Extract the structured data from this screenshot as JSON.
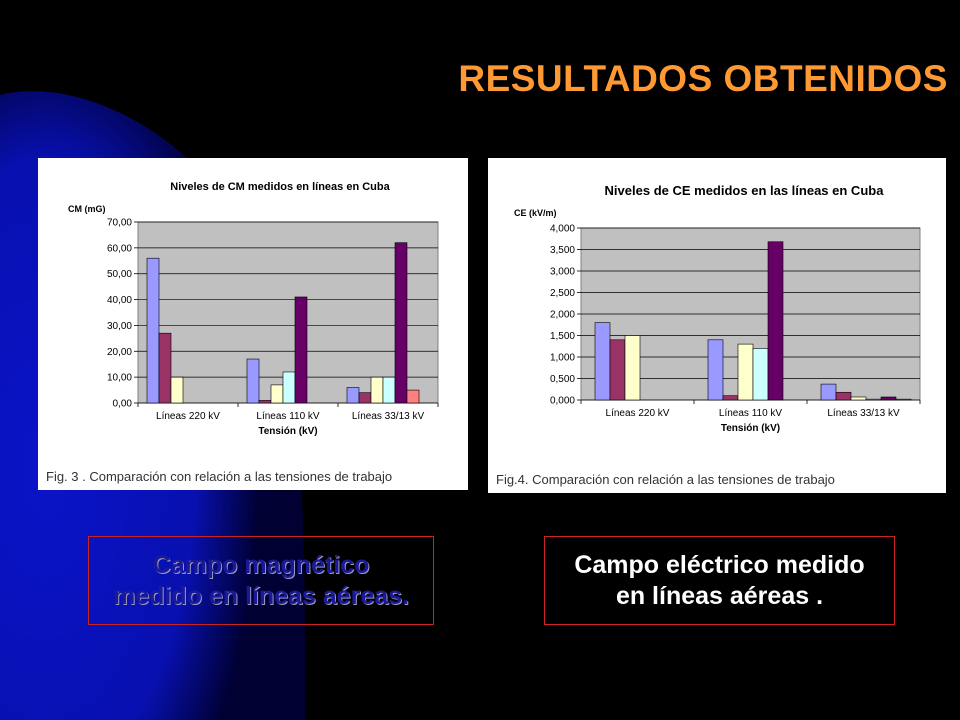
{
  "slide": {
    "title": "RESULTADOS OBTENIDOS",
    "title_color": "#ff9933",
    "background_color": "#000000",
    "accent_shape_color": "#0a14c8"
  },
  "captions": {
    "magnetic": {
      "line1": "Campo magnético",
      "line2": "medido en líneas aéreas.",
      "color": "#1a1a99"
    },
    "electric": {
      "line1": "Campo eléctrico medido",
      "line2": "en líneas aéreas .",
      "color": "#ffffff"
    }
  },
  "chart_data": [
    {
      "type": "bar",
      "title": "Niveles de CM medidos en líneas en Cuba",
      "ylabel": "CM (mG)",
      "xlabel": "Tensión (kV)",
      "caption": "Fig. 3 . Comparación con relación a las tensiones de trabajo",
      "categories": [
        "Líneas 220 kV",
        "Líneas 110 kV",
        "Líneas 33/13 kV"
      ],
      "ylim": [
        0,
        70
      ],
      "yticks": [
        "0,00",
        "10,00",
        "20,00",
        "30,00",
        "40,00",
        "50,00",
        "60,00",
        "70,00"
      ],
      "grid": true,
      "plot_background": "#c0c0c0",
      "series": [
        {
          "color": "#9999ff",
          "values": [
            56,
            17,
            6
          ]
        },
        {
          "color": "#993366",
          "values": [
            27,
            1,
            4
          ]
        },
        {
          "color": "#ffffcc",
          "values": [
            10,
            7,
            10
          ]
        },
        {
          "color": "#ccffff",
          "values": [
            0,
            12,
            10
          ]
        },
        {
          "color": "#660066",
          "values": [
            0,
            41,
            62
          ]
        },
        {
          "color": "#ff8080",
          "values": [
            0,
            0,
            5
          ]
        }
      ]
    },
    {
      "type": "bar",
      "title": "Niveles de CE medidos en las líneas en Cuba",
      "ylabel": "CE (kV/m)",
      "xlabel": "Tensión (kV)",
      "caption": "Fig.4. Comparación con relación a las tensiones de trabajo",
      "categories": [
        "Líneas 220 kV",
        "Líneas 110 kV",
        "Líneas 33/13 kV"
      ],
      "ylim": [
        0,
        4
      ],
      "yticks": [
        "0,000",
        "0,500",
        "1,000",
        "1,500",
        "2,000",
        "2,500",
        "3,000",
        "3,500",
        "4,000"
      ],
      "grid": true,
      "plot_background": "#c0c0c0",
      "series": [
        {
          "color": "#9999ff",
          "values": [
            1.8,
            1.4,
            0.37
          ]
        },
        {
          "color": "#993366",
          "values": [
            1.4,
            0.1,
            0.18
          ]
        },
        {
          "color": "#ffffcc",
          "values": [
            1.5,
            1.3,
            0.07
          ]
        },
        {
          "color": "#ccffff",
          "values": [
            0,
            1.2,
            0.02
          ]
        },
        {
          "color": "#660066",
          "values": [
            0,
            3.68,
            0.07
          ]
        },
        {
          "color": "#ff8080",
          "values": [
            0,
            0,
            0.02
          ]
        }
      ]
    }
  ]
}
